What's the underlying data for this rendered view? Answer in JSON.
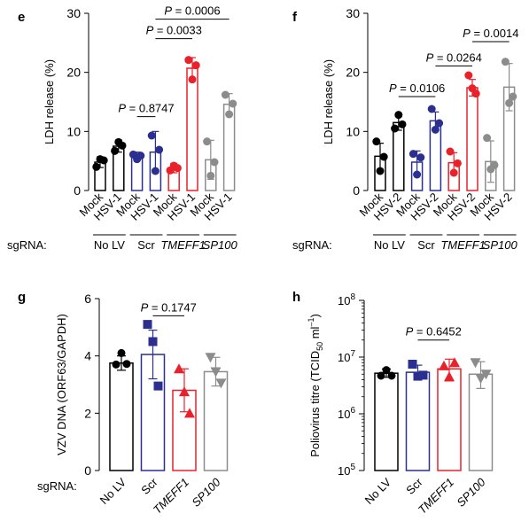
{
  "colors": {
    "black": "#000000",
    "blue": "#2b2f8f",
    "red": "#e8212b",
    "gray": "#8c8c8c"
  },
  "chart_data": [
    {
      "panel_letter": "e",
      "type": "bar",
      "ylabel": "LDH release (%)",
      "ylim": [
        0,
        30
      ],
      "yticks": [
        0,
        10,
        20,
        30
      ],
      "categories": [
        "Mock",
        "HSV-1",
        "Mock",
        "HSV-1",
        "Mock",
        "HSV-1",
        "Mock",
        "HSV-1"
      ],
      "groups": [
        "No LV",
        "Scr",
        "TMEFF1",
        "SP100"
      ],
      "sgrna_label": "sgRNA:",
      "colors": [
        "black",
        "black",
        "blue",
        "blue",
        "red",
        "red",
        "gray",
        "gray"
      ],
      "values": [
        4.8,
        7.5,
        5.8,
        6.5,
        3.8,
        20.7,
        5.2,
        14.6
      ],
      "errors": [
        0.9,
        1.0,
        0.7,
        3.5,
        0.8,
        1.8,
        3.3,
        1.8
      ],
      "points": [
        [
          4.0,
          5.3,
          5.1
        ],
        [
          6.7,
          8.2,
          7.6
        ],
        [
          6.1,
          5.3,
          5.9
        ],
        [
          9.3,
          3.3,
          6.9
        ],
        [
          3.4,
          4.2,
          3.8
        ],
        [
          22.1,
          18.8,
          21.2
        ],
        [
          8.3,
          2.5,
          4.8
        ],
        [
          16.2,
          12.9,
          14.7
        ]
      ],
      "brackets": [
        {
          "from": 2,
          "to": 3,
          "label": "P = 0.8747",
          "y": 12.5
        },
        {
          "from": 3,
          "to": 5,
          "label": "P = 0.0033",
          "y": 25.7
        },
        {
          "from": 3,
          "to": 7,
          "label": "P = 0.0006",
          "y": 29.0
        }
      ]
    },
    {
      "panel_letter": "f",
      "type": "bar",
      "ylabel": "LDH release (%)",
      "ylim": [
        0,
        30
      ],
      "yticks": [
        0,
        10,
        20,
        30
      ],
      "categories": [
        "Mock",
        "HSV-2",
        "Mock",
        "HSV-2",
        "Mock",
        "HSV-2",
        "Mock",
        "HSV-2"
      ],
      "groups": [
        "No LV",
        "Scr",
        "TMEFF1",
        "SP100"
      ],
      "sgrna_label": "sgRNA:",
      "colors": [
        "black",
        "black",
        "blue",
        "blue",
        "red",
        "red",
        "gray",
        "gray"
      ],
      "values": [
        5.8,
        11.5,
        4.8,
        11.8,
        4.7,
        17.4,
        4.9,
        17.5
      ],
      "errors": [
        2.2,
        1.3,
        1.9,
        1.5,
        1.7,
        1.4,
        3.5,
        4.0
      ],
      "points": [
        [
          8.3,
          3.3,
          5.7
        ],
        [
          10.5,
          12.8,
          11.2
        ],
        [
          6.2,
          2.7,
          5.6
        ],
        [
          13.8,
          10.3,
          11.4
        ],
        [
          6.6,
          3.0,
          4.6
        ],
        [
          19.5,
          17.3,
          16.4
        ],
        [
          8.9,
          3.6,
          4.3
        ],
        [
          21.8,
          14.8,
          15.9
        ]
      ],
      "brackets": [
        {
          "from": 1,
          "to": 3,
          "label": "P = 0.0106",
          "y": 15.9
        },
        {
          "from": 3,
          "to": 5,
          "label": "P = 0.0264",
          "y": 21.1
        },
        {
          "from": 5,
          "to": 7,
          "label": "P = 0.0014",
          "y": 25.2
        }
      ]
    },
    {
      "panel_letter": "g",
      "type": "bar",
      "ylabel": "VZV DNA (ORF63/GAPDH)",
      "ylim": [
        0,
        6
      ],
      "yticks": [
        0,
        2,
        4,
        6
      ],
      "categories": [
        "No LV",
        "Scr",
        "TMEFF1",
        "SP100"
      ],
      "sgrna_label": "sgRNA:",
      "colors": [
        "black",
        "blue",
        "red",
        "gray"
      ],
      "values": [
        3.75,
        4.05,
        2.8,
        3.45
      ],
      "errors": [
        0.25,
        0.85,
        0.75,
        0.5
      ],
      "markers": [
        "circle",
        "square",
        "triangle-up",
        "triangle-down"
      ],
      "points": [
        [
          3.7,
          4.1,
          3.72
        ],
        [
          5.1,
          4.5,
          2.95
        ],
        [
          3.55,
          2.75,
          2.0
        ],
        [
          3.95,
          3.45,
          3.05
        ]
      ],
      "brackets": [
        {
          "from": 1,
          "to": 2,
          "label": "P = 0.1747",
          "y": 5.4
        }
      ]
    },
    {
      "panel_letter": "h",
      "type": "bar",
      "ylabel": "Poliovirus titre (TCID50 ml-1)",
      "yscale": "log",
      "ylim": [
        100000,
        100000000
      ],
      "ytick_labels": [
        "10^5",
        "10^6",
        "10^7",
        "10^8"
      ],
      "categories": [
        "No LV",
        "Scr",
        "TMEFF1",
        "SP100"
      ],
      "colors": [
        "black",
        "blue",
        "red",
        "gray"
      ],
      "values": [
        5200000,
        5400000,
        6200000,
        5000000
      ],
      "err_low": [
        4400000,
        4200000,
        3800000,
        2800000
      ],
      "err_high": [
        6200000,
        7200000,
        9200000,
        8300000
      ],
      "markers": [
        "circle",
        "square",
        "triangle-up",
        "triangle-down"
      ],
      "points": [
        [
          4700000,
          5900000,
          4700000
        ],
        [
          7500000,
          4600000,
          4800000
        ],
        [
          7000000,
          4500000,
          8000000
        ],
        [
          8000000,
          4200000,
          5000000
        ]
      ],
      "brackets": [
        {
          "from": 1,
          "to": 2,
          "label": "P = 0.6452",
          "y": 20000000
        }
      ]
    }
  ]
}
